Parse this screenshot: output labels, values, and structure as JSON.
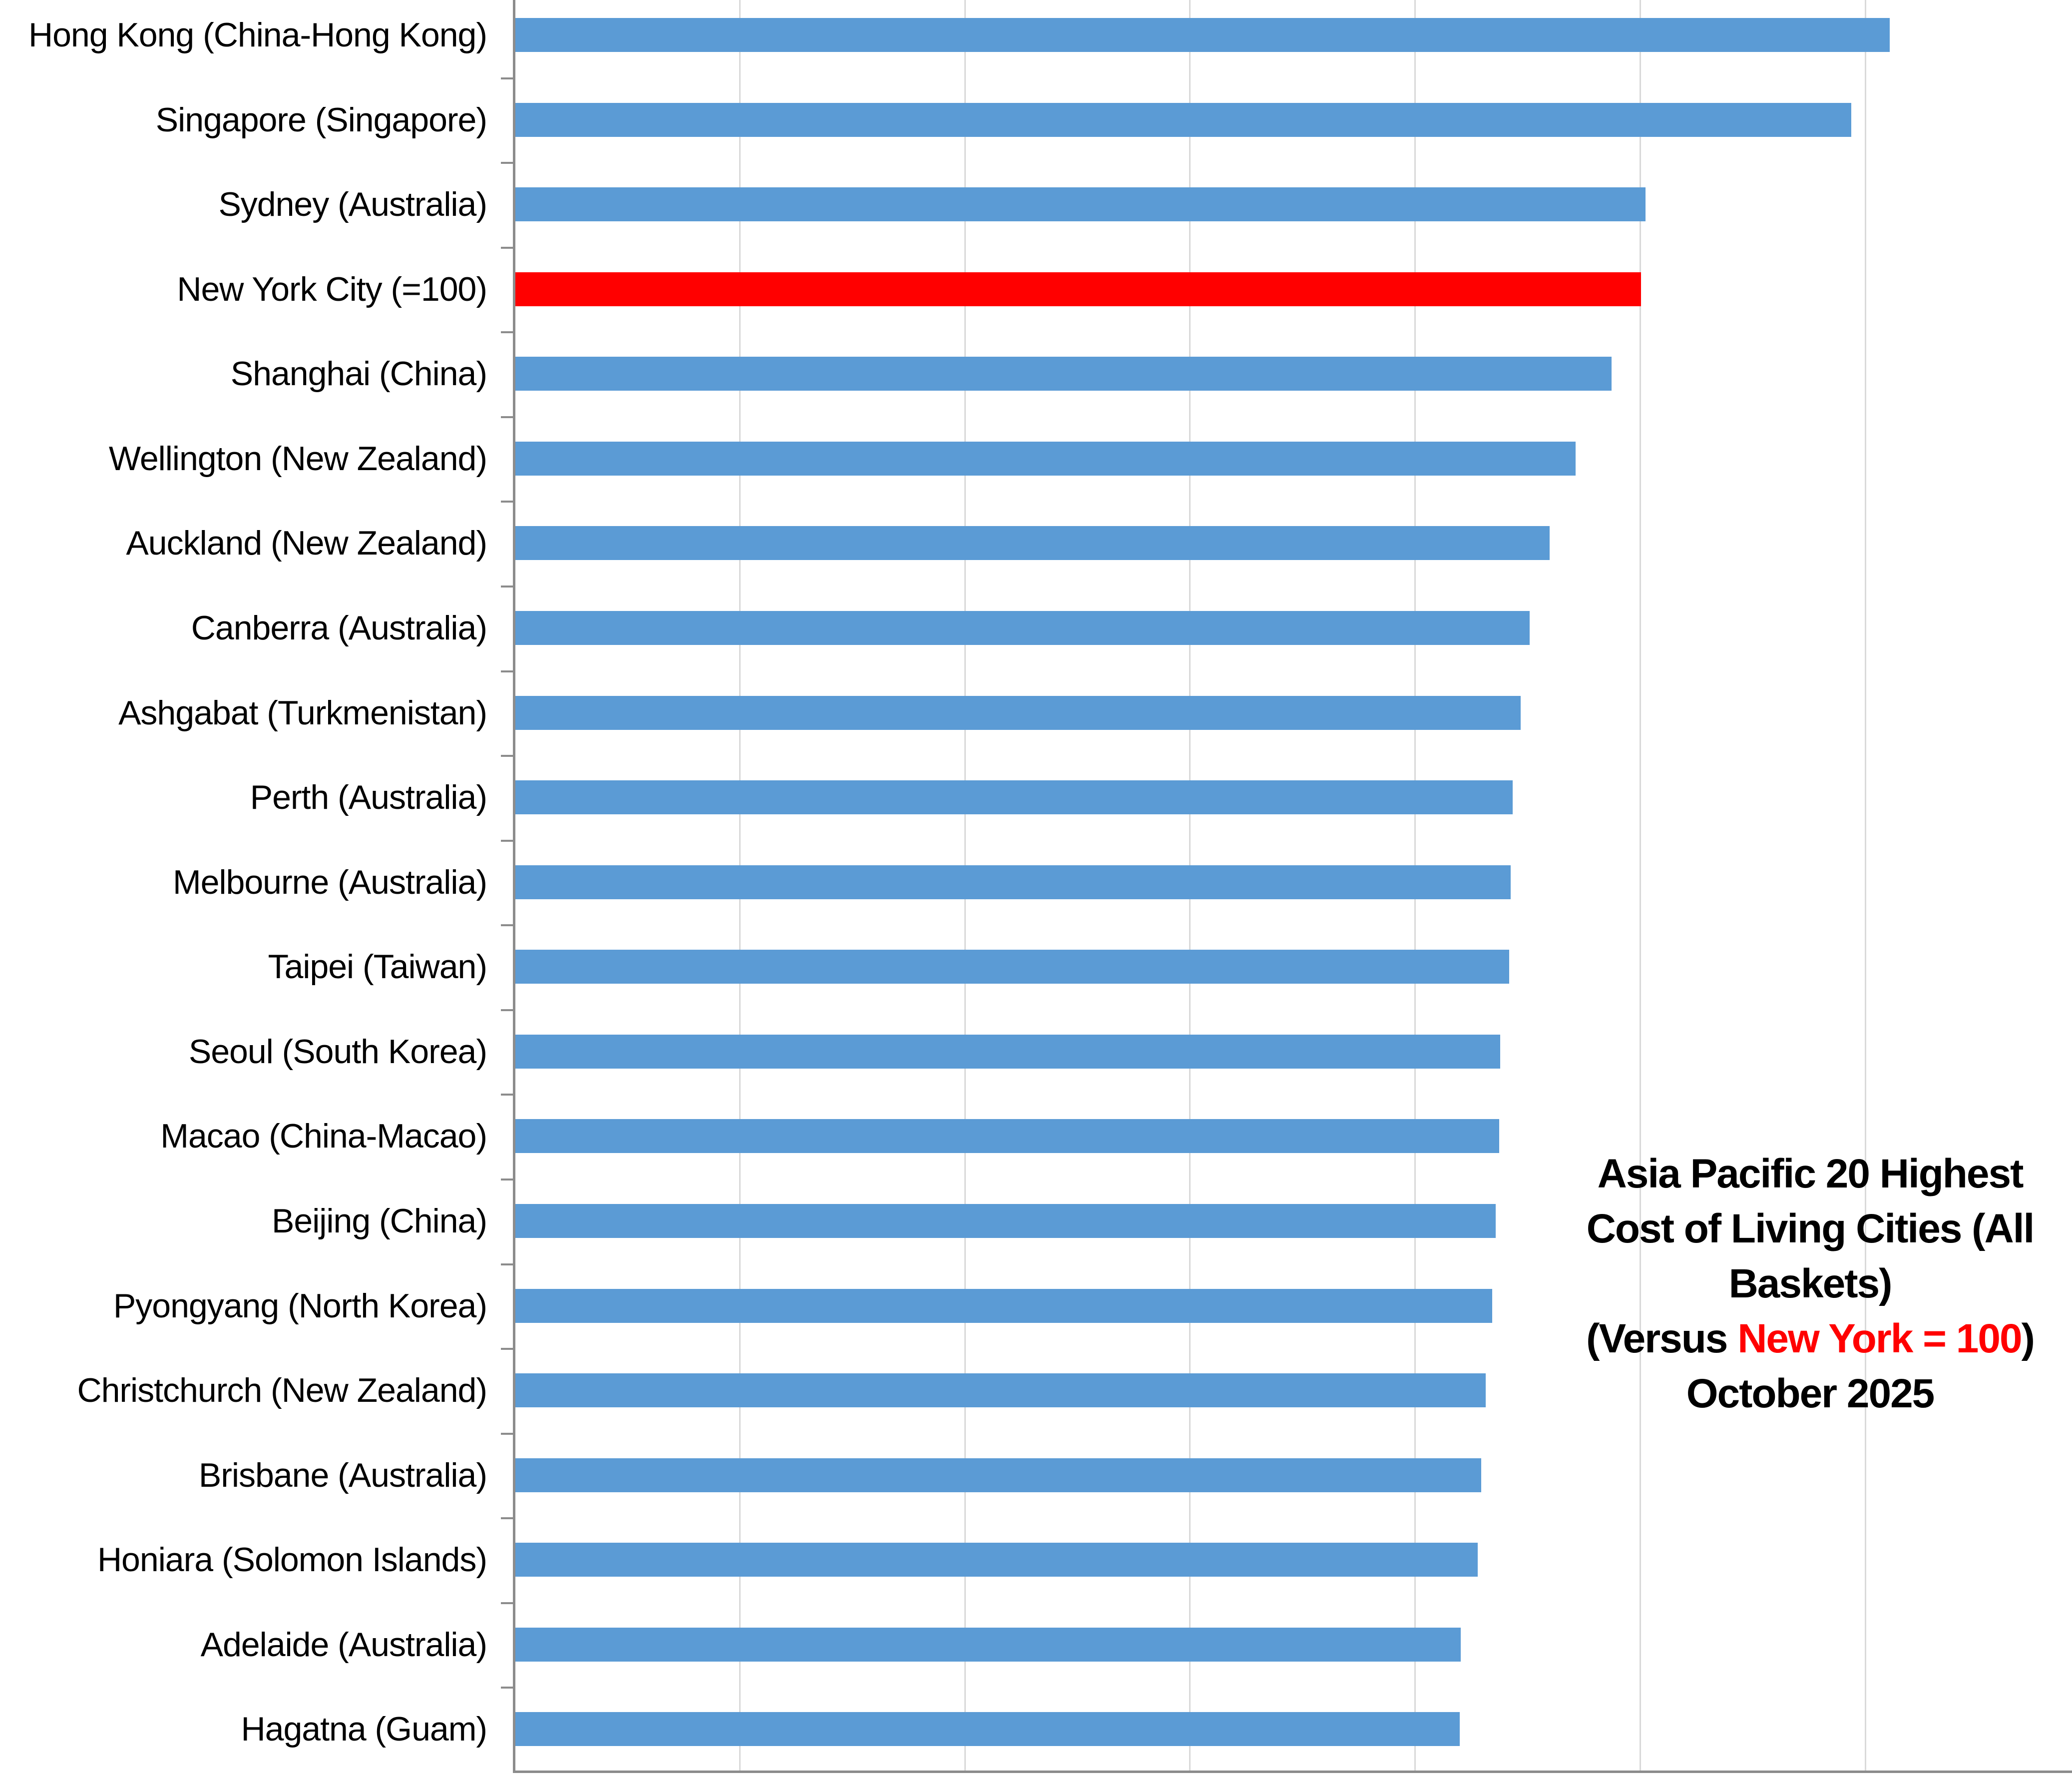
{
  "chart_data": {
    "type": "bar",
    "orientation": "horizontal",
    "title_lines": [
      "Asia Pacific 20 Highest",
      "Cost of Living Cities (All",
      "Baskets)"
    ],
    "subtitle_prefix": "(Versus ",
    "subtitle_highlight": "New York = 100",
    "subtitle_suffix": ")",
    "date_line": "October 2025",
    "categories": [
      "Hong Kong (China-Hong Kong)",
      "Singapore (Singapore)",
      "Sydney (Australia)",
      "New York City (=100)",
      "Shanghai (China)",
      "Wellington (New Zealand)",
      "Auckland (New Zealand)",
      "Canberra (Australia)",
      "Ashgabat (Turkmenistan)",
      "Perth (Australia)",
      "Melbourne (Australia)",
      "Taipei (Taiwan)",
      "Seoul (South Korea)",
      "Macao (China-Macao)",
      "Beijing (China)",
      "Pyongyang (North Korea)",
      "Christchurch (New Zealand)",
      "Brisbane (Australia)",
      "Honiara (Solomon Islands)",
      "Adelaide (Australia)",
      "Hagatna (Guam)"
    ],
    "values": [
      122.1,
      118.7,
      100.4,
      100,
      97.4,
      94.2,
      91.9,
      90.1,
      89.3,
      88.6,
      88.4,
      88.3,
      87.5,
      87.4,
      87.1,
      86.8,
      86.2,
      85.8,
      85.5,
      84.0,
      83.9
    ],
    "highlight_index": 3,
    "baseline_note": "New York = 100",
    "xlabel": "",
    "ylabel": "",
    "xlim": [
      0,
      138.4
    ],
    "x_gridlines": [
      20,
      40,
      60,
      80,
      100,
      120
    ],
    "grid": "vertical-light-gray",
    "legend": "none",
    "x_tick_labels_visible": false
  },
  "colors": {
    "bar": "#5B9BD5",
    "highlight": "#FF0000",
    "axis": "#8C8C8C",
    "gridline": "#D9D9D9",
    "title_text": "#000000",
    "title_highlight": "#FF0000",
    "background": "#FFFFFF"
  }
}
